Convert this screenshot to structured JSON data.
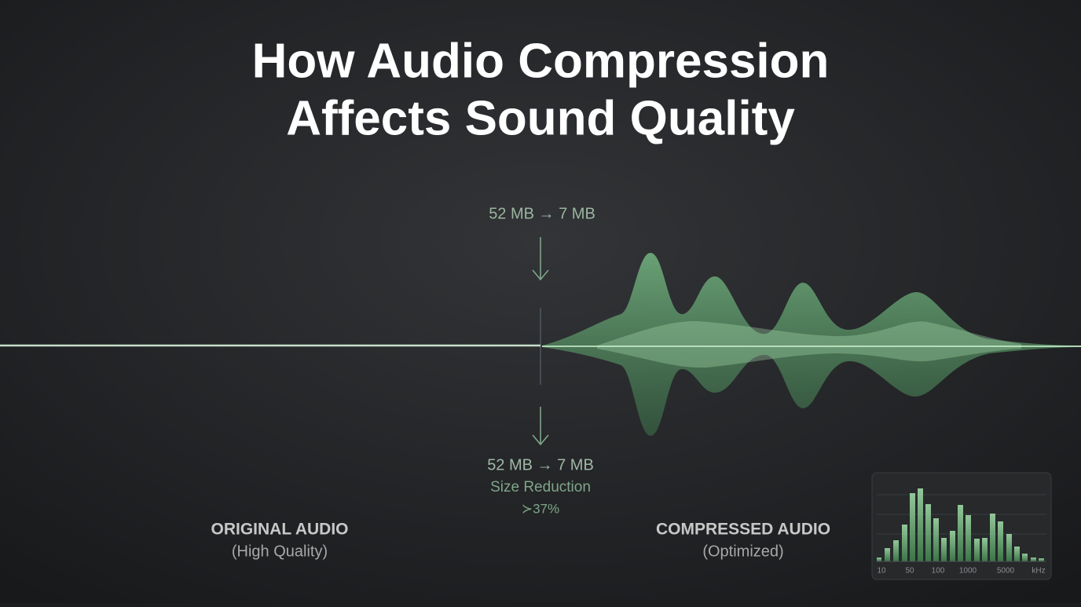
{
  "header": {
    "title_lines": [
      "How Audio Compression",
      "Affects Sound Quality"
    ]
  },
  "center": {
    "top_label": "52 MB → 7 MB",
    "bottom_label": "52 MB → 7 MB",
    "caption": "Size Reduction",
    "reduction": "≻37%"
  },
  "original": {
    "label": "ORIGINAL AUDIO",
    "sublabel": "(High Quality)"
  },
  "compressed": {
    "label": "COMPRESSED AUDIO",
    "sublabel": "(Optimized)"
  },
  "spectrum": {
    "axis_labels": [
      "10",
      "50",
      "100",
      "1000",
      "5000",
      "kHz"
    ]
  }
}
